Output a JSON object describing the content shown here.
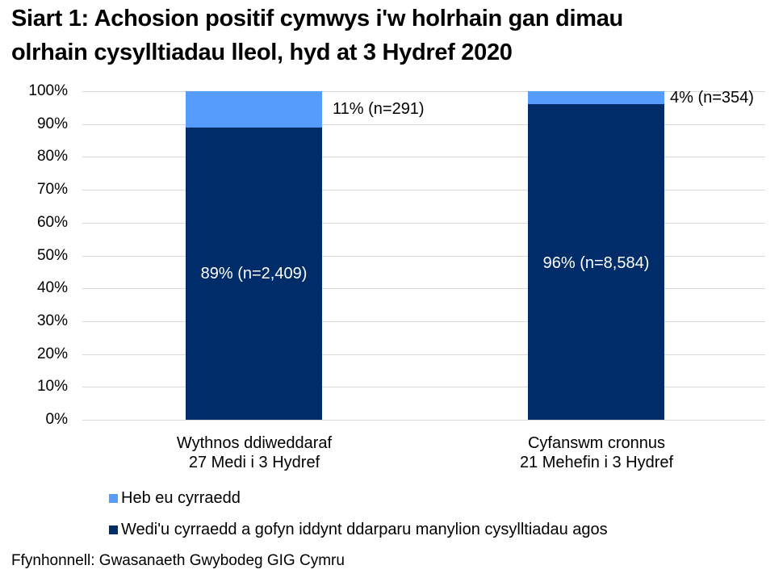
{
  "chart_data": {
    "type": "bar",
    "stacked": true,
    "title": "Siart 1: Achosion positif cymwys i'w holrhain gan dimau olrhain cysylltiadau lleol, hyd at 3 Hydref 2020",
    "title_lines": [
      "Siart 1: Achosion positif cymwys i'w holrhain gan dimau",
      "olrhain cysylltiadau lleol, hyd at 3 Hydref 2020"
    ],
    "categories": [
      [
        "Wythnos ddiweddaraf",
        "27 Medi i 3 Hydref"
      ],
      [
        "Cyfanswm cronnus",
        "21 Mehefin i 3 Hydref"
      ]
    ],
    "series": [
      {
        "name": "Wedi'u cyrraedd a gofyn iddynt ddarparu manylion cysylltiadau agos",
        "color": "#002d6a",
        "values": [
          89,
          96
        ],
        "labels": [
          "89% (n=2,409)",
          "96% (n=8,584)"
        ]
      },
      {
        "name": "Heb eu cyrraedd",
        "color": "#559cfc",
        "values": [
          11,
          4
        ],
        "labels": [
          "11% (n=291)",
          "4% (n=354)"
        ]
      }
    ],
    "yticks": [
      "0%",
      "10%",
      "20%",
      "30%",
      "40%",
      "50%",
      "60%",
      "70%",
      "80%",
      "90%",
      "100%"
    ],
    "ylim": [
      0,
      100
    ],
    "xlabel": "",
    "ylabel": "",
    "grid": true,
    "legend_position": "bottom",
    "legend": [
      "Heb eu cyrraedd",
      "Wedi'u cyrraedd a gofyn iddynt ddarparu manylion cysylltiadau agos"
    ]
  },
  "source": "Ffynhonnell: Gwasanaeth Gwybodeg GIG Cymru"
}
